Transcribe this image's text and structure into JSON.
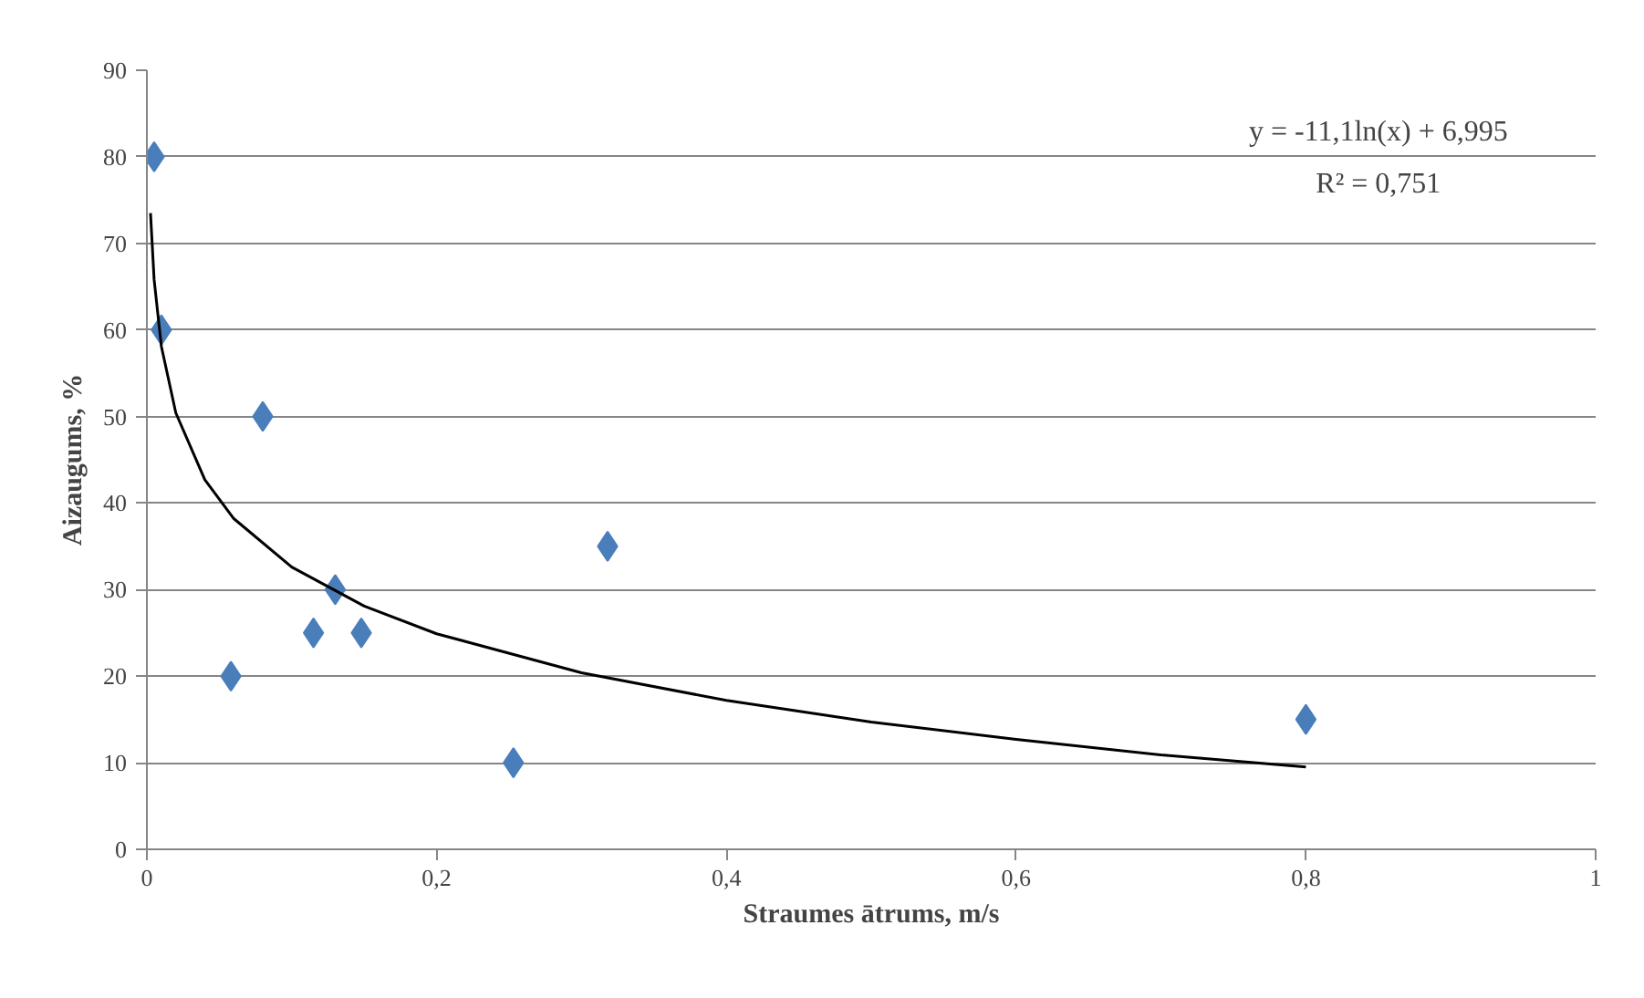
{
  "chart_data": {
    "type": "scatter",
    "xlabel": "Straumes ātrums, m/s",
    "ylabel": "Aizaugums, %",
    "xlim": [
      0,
      1
    ],
    "xticks": [
      0,
      {
        "value": 0.2,
        "label": "0,2"
      },
      {
        "value": 0.4,
        "label": "0,4"
      },
      {
        "value": 0.6,
        "label": "0,6"
      },
      {
        "value": 0.8,
        "label": "0,8"
      },
      1
    ],
    "ylim": [
      0,
      90
    ],
    "yticks": [
      0,
      10,
      20,
      30,
      40,
      50,
      60,
      70,
      80,
      90
    ],
    "grid": "y",
    "marker": "diamond",
    "series": [
      {
        "color": "#4a7ebb",
        "x": [
          0.005,
          0.01,
          0.08,
          0.058,
          0.115,
          0.13,
          0.148,
          0.253,
          0.318,
          0.8
        ],
        "values": [
          80,
          60,
          50,
          20,
          25,
          30,
          25,
          10,
          35,
          15
        ]
      },
      {
        "type": "line",
        "color": "#000000",
        "marker": "none",
        "x": [
          0.0025,
          0.005,
          0.01,
          0.02,
          0.04,
          0.06,
          0.1,
          0.15,
          0.2,
          0.3,
          0.4,
          0.5,
          0.6,
          0.7,
          0.8
        ],
        "values": [
          73.5,
          65.8,
          58.1,
          50.4,
          42.7,
          38.2,
          32.6,
          28.1,
          24.9,
          20.4,
          17.2,
          14.7,
          12.7,
          10.9,
          9.5
        ]
      }
    ],
    "annotations": [
      "y = -11,1ln(x) + 6,995",
      "R² = 0,751"
    ]
  }
}
